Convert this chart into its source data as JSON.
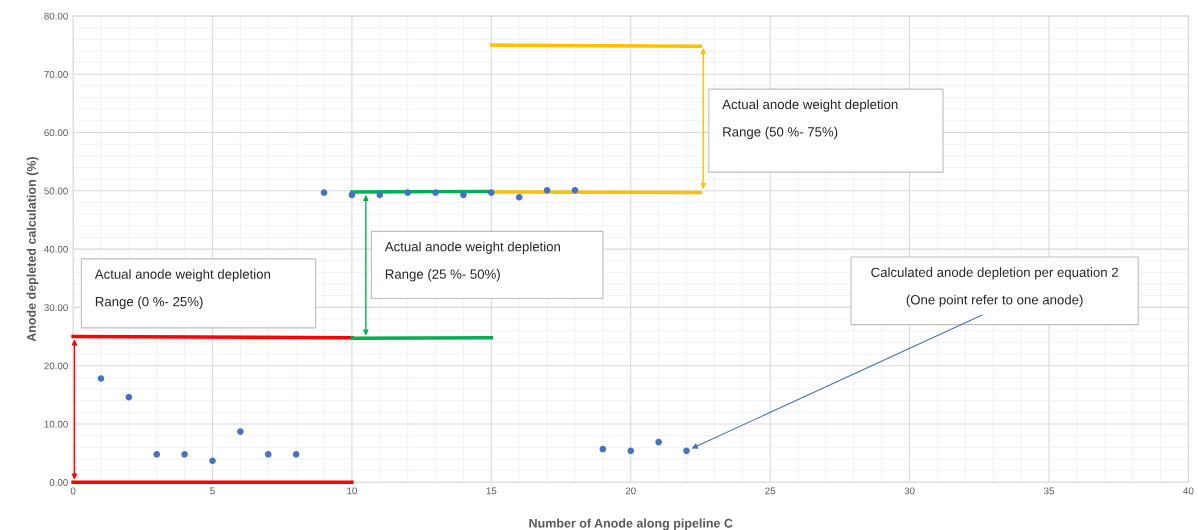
{
  "chart_data": {
    "type": "scatter",
    "xlabel": "Number of Anode along pipeline C",
    "ylabel": "Anode depleted calculation (%)",
    "xlim": [
      0,
      40
    ],
    "xticks": [
      0,
      5,
      10,
      15,
      20,
      25,
      30,
      35,
      40
    ],
    "ylim": [
      0,
      80
    ],
    "yticks": [
      {
        "value": 0,
        "label": "0.00"
      },
      {
        "value": 10,
        "label": "10.00"
      },
      {
        "value": 20,
        "label": "20.00"
      },
      {
        "value": 30,
        "label": "30.00"
      },
      {
        "value": 40,
        "label": "40.00"
      },
      {
        "value": 50,
        "label": "50.00"
      },
      {
        "value": 60,
        "label": "60.00"
      },
      {
        "value": 70,
        "label": "70.00"
      },
      {
        "value": 80,
        "label": "80.00"
      }
    ],
    "grid": true,
    "legend": false,
    "series": [
      {
        "marker": "circle",
        "color": "#4472c4",
        "x": [
          1,
          2,
          3,
          4,
          5,
          6,
          7,
          8,
          9,
          10,
          11,
          12,
          13,
          14,
          15,
          16,
          17,
          18,
          19,
          20,
          21,
          22
        ],
        "values": [
          17.8,
          14.6,
          4.8,
          4.8,
          3.7,
          8.7,
          4.8,
          4.8,
          49.7,
          49.3,
          49.3,
          49.7,
          49.7,
          49.3,
          49.7,
          48.9,
          50.1,
          50.1,
          5.7,
          5.4,
          6.9,
          5.4
        ]
      },
      {
        "type": "line",
        "color": "#ff0000",
        "x": [
          0,
          10
        ],
        "values": [
          0,
          0
        ]
      },
      {
        "type": "line",
        "color": "#ff0000",
        "x": [
          0,
          10
        ],
        "values": [
          25,
          24.8
        ]
      },
      {
        "type": "line",
        "color": "#00b050",
        "x": [
          10,
          15
        ],
        "values": [
          24.7,
          24.8
        ]
      },
      {
        "type": "line",
        "color": "#00b050",
        "x": [
          10,
          15
        ],
        "values": [
          49.8,
          49.9
        ]
      },
      {
        "type": "line",
        "color": "#ffc000",
        "x": [
          15,
          22.5
        ],
        "values": [
          49.8,
          49.7
        ]
      },
      {
        "type": "line",
        "color": "#ffc000",
        "x": [
          15,
          22.5
        ],
        "values": [
          75,
          74.8
        ]
      }
    ],
    "annotations": [
      "Actual anode weight depletion\n\nRange (0 %- 25%)",
      "Actual anode weight depletion\n\nRange (25 %- 50%)",
      "Actual anode weight depletion\n\nRange (50 %- 75%)\n",
      {
        "text": "Calculated anode depletion per equation 2\n\n(One point refer to one anode)",
        "x": 22,
        "y": 5.4
      }
    ]
  }
}
